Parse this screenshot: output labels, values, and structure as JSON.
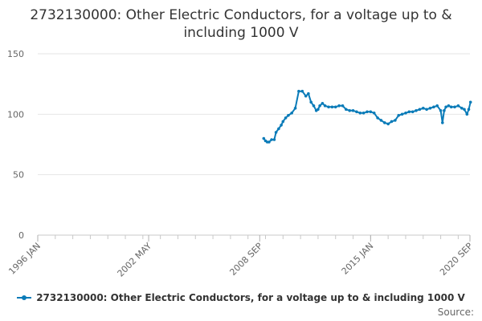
{
  "chart_data": {
    "type": "line",
    "title": "2732130000: Other Electric Conductors, for a voltage up to & including 1000 V",
    "xlabel": "",
    "ylabel": "",
    "x_ticks": [
      "1996 JAN",
      "2002 MAY",
      "2008 SEP",
      "2015 JAN",
      "2020 SEP"
    ],
    "x_tick_years": [
      1996.0,
      2002.33,
      2008.67,
      2015.0,
      2020.67
    ],
    "xlim": [
      1996.0,
      2020.67
    ],
    "y_ticks": [
      0,
      50,
      100,
      150
    ],
    "ylim": [
      0,
      150
    ],
    "grid": true,
    "legend_position": "bottom",
    "series": [
      {
        "name": "2732130000: Other Electric Conductors, for a voltage up to & including 1000 V",
        "color": "#0a7bb8",
        "x": [
          2008.9,
          2009.0,
          2009.1,
          2009.2,
          2009.35,
          2009.5,
          2009.6,
          2009.75,
          2009.9,
          2010.0,
          2010.15,
          2010.3,
          2010.5,
          2010.7,
          2010.9,
          2011.1,
          2011.3,
          2011.45,
          2011.6,
          2011.75,
          2011.9,
          2012.0,
          2012.1,
          2012.25,
          2012.4,
          2012.6,
          2012.8,
          2013.0,
          2013.2,
          2013.4,
          2013.6,
          2013.8,
          2014.0,
          2014.2,
          2014.4,
          2014.6,
          2014.8,
          2015.0,
          2015.2,
          2015.4,
          2015.6,
          2015.8,
          2016.0,
          2016.2,
          2016.4,
          2016.6,
          2016.8,
          2017.0,
          2017.2,
          2017.4,
          2017.6,
          2017.8,
          2018.0,
          2018.2,
          2018.4,
          2018.6,
          2018.8,
          2019.0,
          2019.1,
          2019.2,
          2019.3,
          2019.45,
          2019.6,
          2019.8,
          2020.0,
          2020.2,
          2020.35,
          2020.5,
          2020.6,
          2020.7
        ],
        "y": [
          80,
          78,
          77,
          77,
          79,
          79,
          85,
          88,
          91,
          94,
          97,
          99,
          101,
          105,
          119,
          119,
          115,
          117,
          110,
          107,
          103,
          104,
          107,
          109,
          107,
          106,
          106,
          106,
          107,
          107,
          104,
          103,
          103,
          102,
          101,
          101,
          102,
          102,
          101,
          97,
          95,
          93,
          92,
          94,
          95,
          99,
          100,
          101,
          102,
          102,
          103,
          104,
          105,
          104,
          105,
          106,
          107,
          103,
          93,
          103,
          106,
          107,
          106,
          106,
          107,
          105,
          104,
          100,
          104,
          110
        ]
      }
    ]
  },
  "legend": {
    "label": "2732130000: Other Electric Conductors, for a voltage up to & including 1000 V"
  },
  "footer": {
    "source_label": "Source:"
  }
}
